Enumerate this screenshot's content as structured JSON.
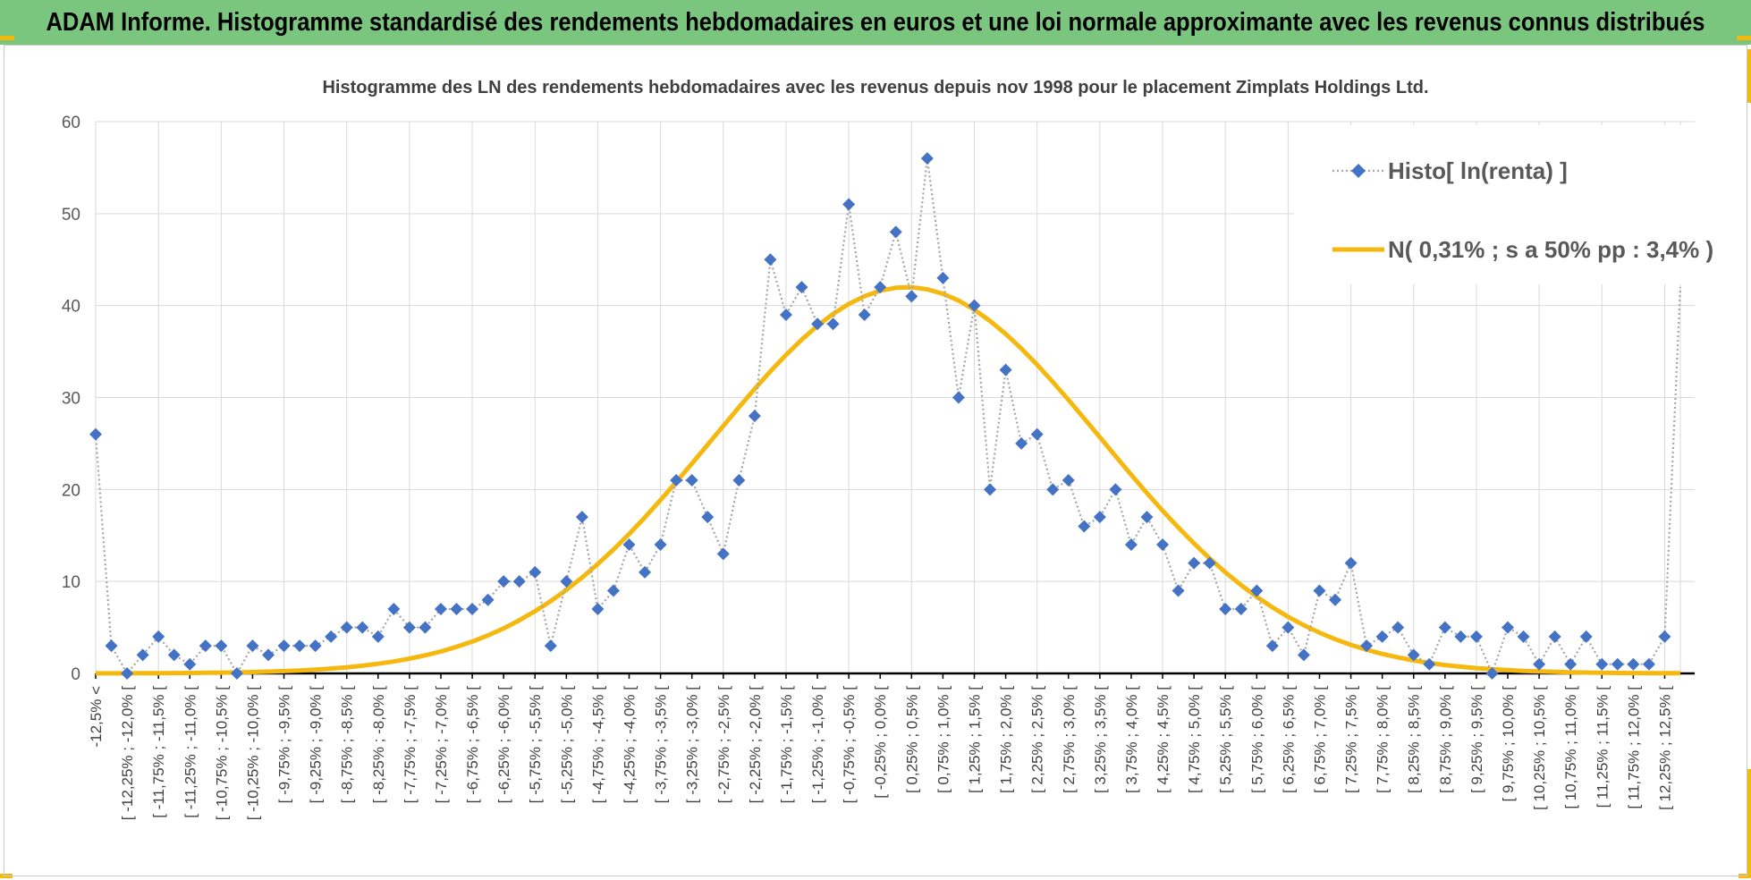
{
  "banner": {
    "title": "ADAM Informe. Histogramme standardisé des rendements hebdomadaires en euros et une loi normale approximante avec les revenus connus distribués"
  },
  "colors": {
    "banner_bg": "#7bc67e",
    "accent": "#f5b80f",
    "histo_series": "#4472c4",
    "histo_line": "#a6a6a6",
    "normal_series": "#f5b80f"
  },
  "chart_data": {
    "type": "line",
    "title": "Histogramme des LN des rendements hebdomadaires avec les revenus depuis nov 1998 pour le placement Zimplats Holdings Ltd.",
    "xlabel": "",
    "ylabel": "",
    "ylim": [
      0,
      60
    ],
    "yticks": [
      "0",
      "10",
      "20",
      "30",
      "40",
      "50",
      "60"
    ],
    "grid": true,
    "legend_position": "top-right",
    "labeled_categories": [
      "-12,5% <",
      "[ -12,25% ; -12,0% [",
      "[ -11,75% ; -11,5% [",
      "[ -11,25% ; -11,0% [",
      "[ -10,75% ; -10,5% [",
      "[ -10,25% ; -10,0% [",
      "[ -9,75% ; -9,5% [",
      "[ -9,25% ; -9,0% [",
      "[ -8,75% ; -8,5% [",
      "[ -8,25% ; -8,0% [",
      "[ -7,75% ; -7,5% [",
      "[ -7,25% ; -7,0% [",
      "[ -6,75% ; -6,5% [",
      "[ -6,25% ; -6,0% [",
      "[ -5,75% ; -5,5% [",
      "[ -5,25% ; -5,0% [",
      "[ -4,75% ; -4,5% [",
      "[ -4,25% ; -4,0% [",
      "[ -3,75% ; -3,5% [",
      "[ -3,25% ; -3,0% [",
      "[ -2,75% ; -2,5% [",
      "[ -2,25% ; -2,0% [",
      "[ -1,75% ; -1,5% [",
      "[ -1,25% ; -1,0% [",
      "[ -0,75% ; -0,5% [",
      "[ -0,25% ; 0,0% [",
      "[ 0,25% ; 0,5% [",
      "[ 0,75% ; 1,0% [",
      "[ 1,25% ; 1,5% [",
      "[ 1,75% ; 2,0% [",
      "[ 2,25% ; 2,5% [",
      "[ 2,75% ; 3,0% [",
      "[ 3,25% ; 3,5% [",
      "[ 3,75% ; 4,0% [",
      "[ 4,25% ; 4,5% [",
      "[ 4,75% ; 5,0% [",
      "[ 5,25% ; 5,5% [",
      "[ 5,75% ; 6,0% [",
      "[ 6,25% ; 6,5% [",
      "[ 6,75% ; 7,0% [",
      "[ 7,25% ; 7,5% [",
      "[ 7,75% ; 8,0% [",
      "[ 8,25% ; 8,5% [",
      "[ 8,75% ; 9,0% [",
      "[ 9,25% ; 9,5% [",
      "[ 9,75% ; 10,0% [",
      "[ 10,25% ; 10,5% [",
      "[ 10,75% ; 11,0% [",
      "[ 11,25% ; 11,5% [",
      "[ 11,75% ; 12,0% [",
      "[ 12,25% ; 12,5% ["
    ],
    "series": [
      {
        "name": "Histo[ ln(renta) ]",
        "values": [
          26,
          3,
          0,
          2,
          4,
          2,
          1,
          3,
          3,
          0,
          3,
          2,
          3,
          3,
          3,
          4,
          5,
          5,
          4,
          7,
          5,
          5,
          7,
          7,
          7,
          8,
          10,
          10,
          11,
          3,
          10,
          17,
          7,
          9,
          14,
          11,
          14,
          21,
          21,
          17,
          13,
          21,
          28,
          45,
          39,
          42,
          38,
          38,
          51,
          39,
          42,
          48,
          41,
          56,
          43,
          30,
          40,
          20,
          33,
          25,
          26,
          20,
          21,
          16,
          17,
          20,
          14,
          17,
          14,
          9,
          12,
          12,
          7,
          7,
          9,
          3,
          5,
          2,
          9,
          8,
          12,
          3,
          4,
          5,
          2,
          1,
          5,
          4,
          4,
          0,
          5,
          4,
          1,
          4,
          1,
          4,
          1,
          1,
          1,
          1,
          4,
          42
        ]
      },
      {
        "name": "N( 0,31% ; s a 50% pp : 3,4% )",
        "mean_bin_index": 51.7,
        "sd_bins": 12.4,
        "peak": 42
      }
    ]
  }
}
